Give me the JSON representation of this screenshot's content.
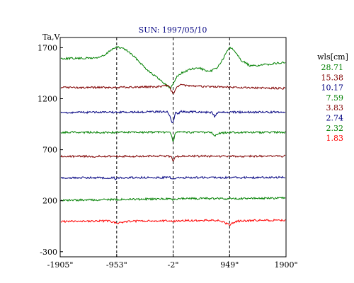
{
  "chart_data": {
    "type": "line",
    "title": "SUN: 1997/05/10",
    "ylabel": "Ta,V",
    "xlabel": "",
    "xlim": [
      -1905,
      1900
    ],
    "ylim": [
      -350,
      1800
    ],
    "x_ticks": [
      {
        "value": -1905,
        "label": "-1905\""
      },
      {
        "value": -953,
        "label": "-953\""
      },
      {
        "value": -2,
        "label": "-2\""
      },
      {
        "value": 949,
        "label": "949\""
      },
      {
        "value": 1900,
        "label": "1900\""
      }
    ],
    "y_ticks": [
      {
        "value": 1700,
        "label": "1700"
      },
      {
        "value": 1200,
        "label": "1200"
      },
      {
        "value": 700,
        "label": "700"
      },
      {
        "value": 200,
        "label": "200"
      },
      {
        "value": -300,
        "label": "-300"
      }
    ],
    "vlines": [
      -953,
      -2,
      949
    ],
    "legend": {
      "title": "wls[cm]",
      "position": "right",
      "entries": [
        {
          "label": "28.71",
          "color": "#008000"
        },
        {
          "label": "15.38",
          "color": "#800000"
        },
        {
          "label": "10.17",
          "color": "#000080"
        },
        {
          "label": "7.59",
          "color": "#008000"
        },
        {
          "label": "3.83",
          "color": "#800000"
        },
        {
          "label": "2.74",
          "color": "#000080"
        },
        {
          "label": "2.32",
          "color": "#008000"
        },
        {
          "label": "1.83",
          "color": "#ff0000"
        }
      ]
    },
    "series": [
      {
        "color": "#008000",
        "x": [
          -1905,
          -1600,
          -1300,
          -1150,
          -1050,
          -953,
          -850,
          -750,
          -600,
          -450,
          -300,
          -150,
          -50,
          -2,
          50,
          150,
          300,
          450,
          600,
          750,
          850,
          949,
          1050,
          1150,
          1300,
          1500,
          1700,
          1900
        ],
        "y": [
          1595,
          1595,
          1600,
          1625,
          1680,
          1705,
          1695,
          1660,
          1580,
          1490,
          1420,
          1350,
          1300,
          1345,
          1410,
          1455,
          1490,
          1500,
          1460,
          1510,
          1600,
          1710,
          1660,
          1575,
          1520,
          1530,
          1545,
          1555
        ]
      },
      {
        "color": "#800000",
        "x": [
          -1905,
          -953,
          -300,
          -150,
          -80,
          -30,
          -2,
          30,
          80,
          150,
          300,
          700,
          850,
          949,
          1300,
          1900
        ],
        "y": [
          1310,
          1310,
          1318,
          1325,
          1335,
          1275,
          1250,
          1280,
          1325,
          1335,
          1322,
          1318,
          1315,
          1312,
          1306,
          1302
        ]
      },
      {
        "color": "#000080",
        "x": [
          -1905,
          -953,
          -200,
          -100,
          -60,
          -30,
          -10,
          10,
          40,
          80,
          120,
          300,
          500,
          650,
          700,
          750,
          800,
          949,
          1300,
          1900
        ],
        "y": [
          1065,
          1068,
          1072,
          1072,
          1035,
          985,
          960,
          990,
          1075,
          1050,
          1075,
          1070,
          1068,
          1066,
          1025,
          1065,
          1068,
          1068,
          1068,
          1070
        ]
      },
      {
        "color": "#008000",
        "x": [
          -1905,
          -953,
          -200,
          -80,
          -40,
          -20,
          -5,
          10,
          30,
          60,
          120,
          300,
          500,
          650,
          700,
          750,
          949,
          1300,
          1900
        ],
        "y": [
          870,
          870,
          872,
          870,
          860,
          820,
          780,
          800,
          848,
          870,
          872,
          870,
          870,
          868,
          830,
          860,
          870,
          870,
          872
        ]
      },
      {
        "color": "#800000",
        "x": [
          -1905,
          -953,
          -200,
          -60,
          -30,
          -15,
          0,
          15,
          40,
          100,
          300,
          949,
          1300,
          1900
        ],
        "y": [
          635,
          635,
          637,
          635,
          630,
          600,
          580,
          605,
          632,
          636,
          637,
          636,
          636,
          638
        ]
      },
      {
        "color": "#000080",
        "x": [
          -1905,
          -1000,
          -970,
          -953,
          -930,
          -600,
          -60,
          -20,
          0,
          30,
          60,
          300,
          700,
          949,
          1300,
          1900
        ],
        "y": [
          425,
          425,
          412,
          418,
          425,
          426,
          428,
          415,
          408,
          418,
          427,
          427,
          427,
          426,
          427,
          428
        ]
      },
      {
        "color": "#008000",
        "x": [
          -1905,
          -1400,
          -953,
          -600,
          -100,
          -2,
          100,
          500,
          949,
          1300,
          1900
        ],
        "y": [
          205,
          208,
          212,
          215,
          218,
          212,
          220,
          222,
          220,
          222,
          226
        ]
      },
      {
        "color": "#ff0000",
        "x": [
          -1905,
          -1400,
          -1100,
          -953,
          -800,
          -600,
          -300,
          -100,
          -2,
          100,
          300,
          600,
          800,
          870,
          920,
          949,
          1000,
          1100,
          1300,
          1600,
          1900
        ],
        "y": [
          -5,
          0,
          2,
          -20,
          -5,
          0,
          2,
          3,
          -5,
          5,
          5,
          8,
          5,
          -15,
          -30,
          -40,
          -20,
          0,
          5,
          8,
          10
        ]
      }
    ]
  }
}
